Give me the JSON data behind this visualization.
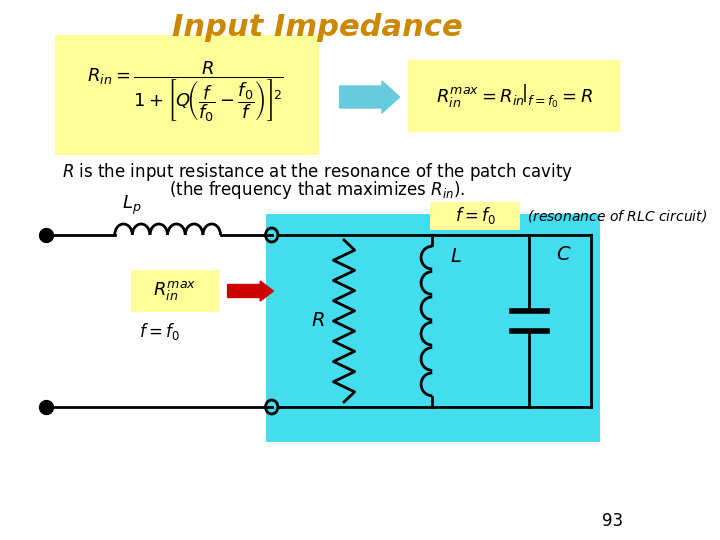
{
  "title": "Input Impedance",
  "title_color": "#CC8800",
  "title_fontsize": 22,
  "bg_color": "#FFFFFF",
  "formula_bg": "#FFFF99",
  "cyan_bg": "#44DDEE",
  "page_number": "93",
  "arrow_color": "#66CCDD",
  "red_arrow_color": "#CC0000"
}
